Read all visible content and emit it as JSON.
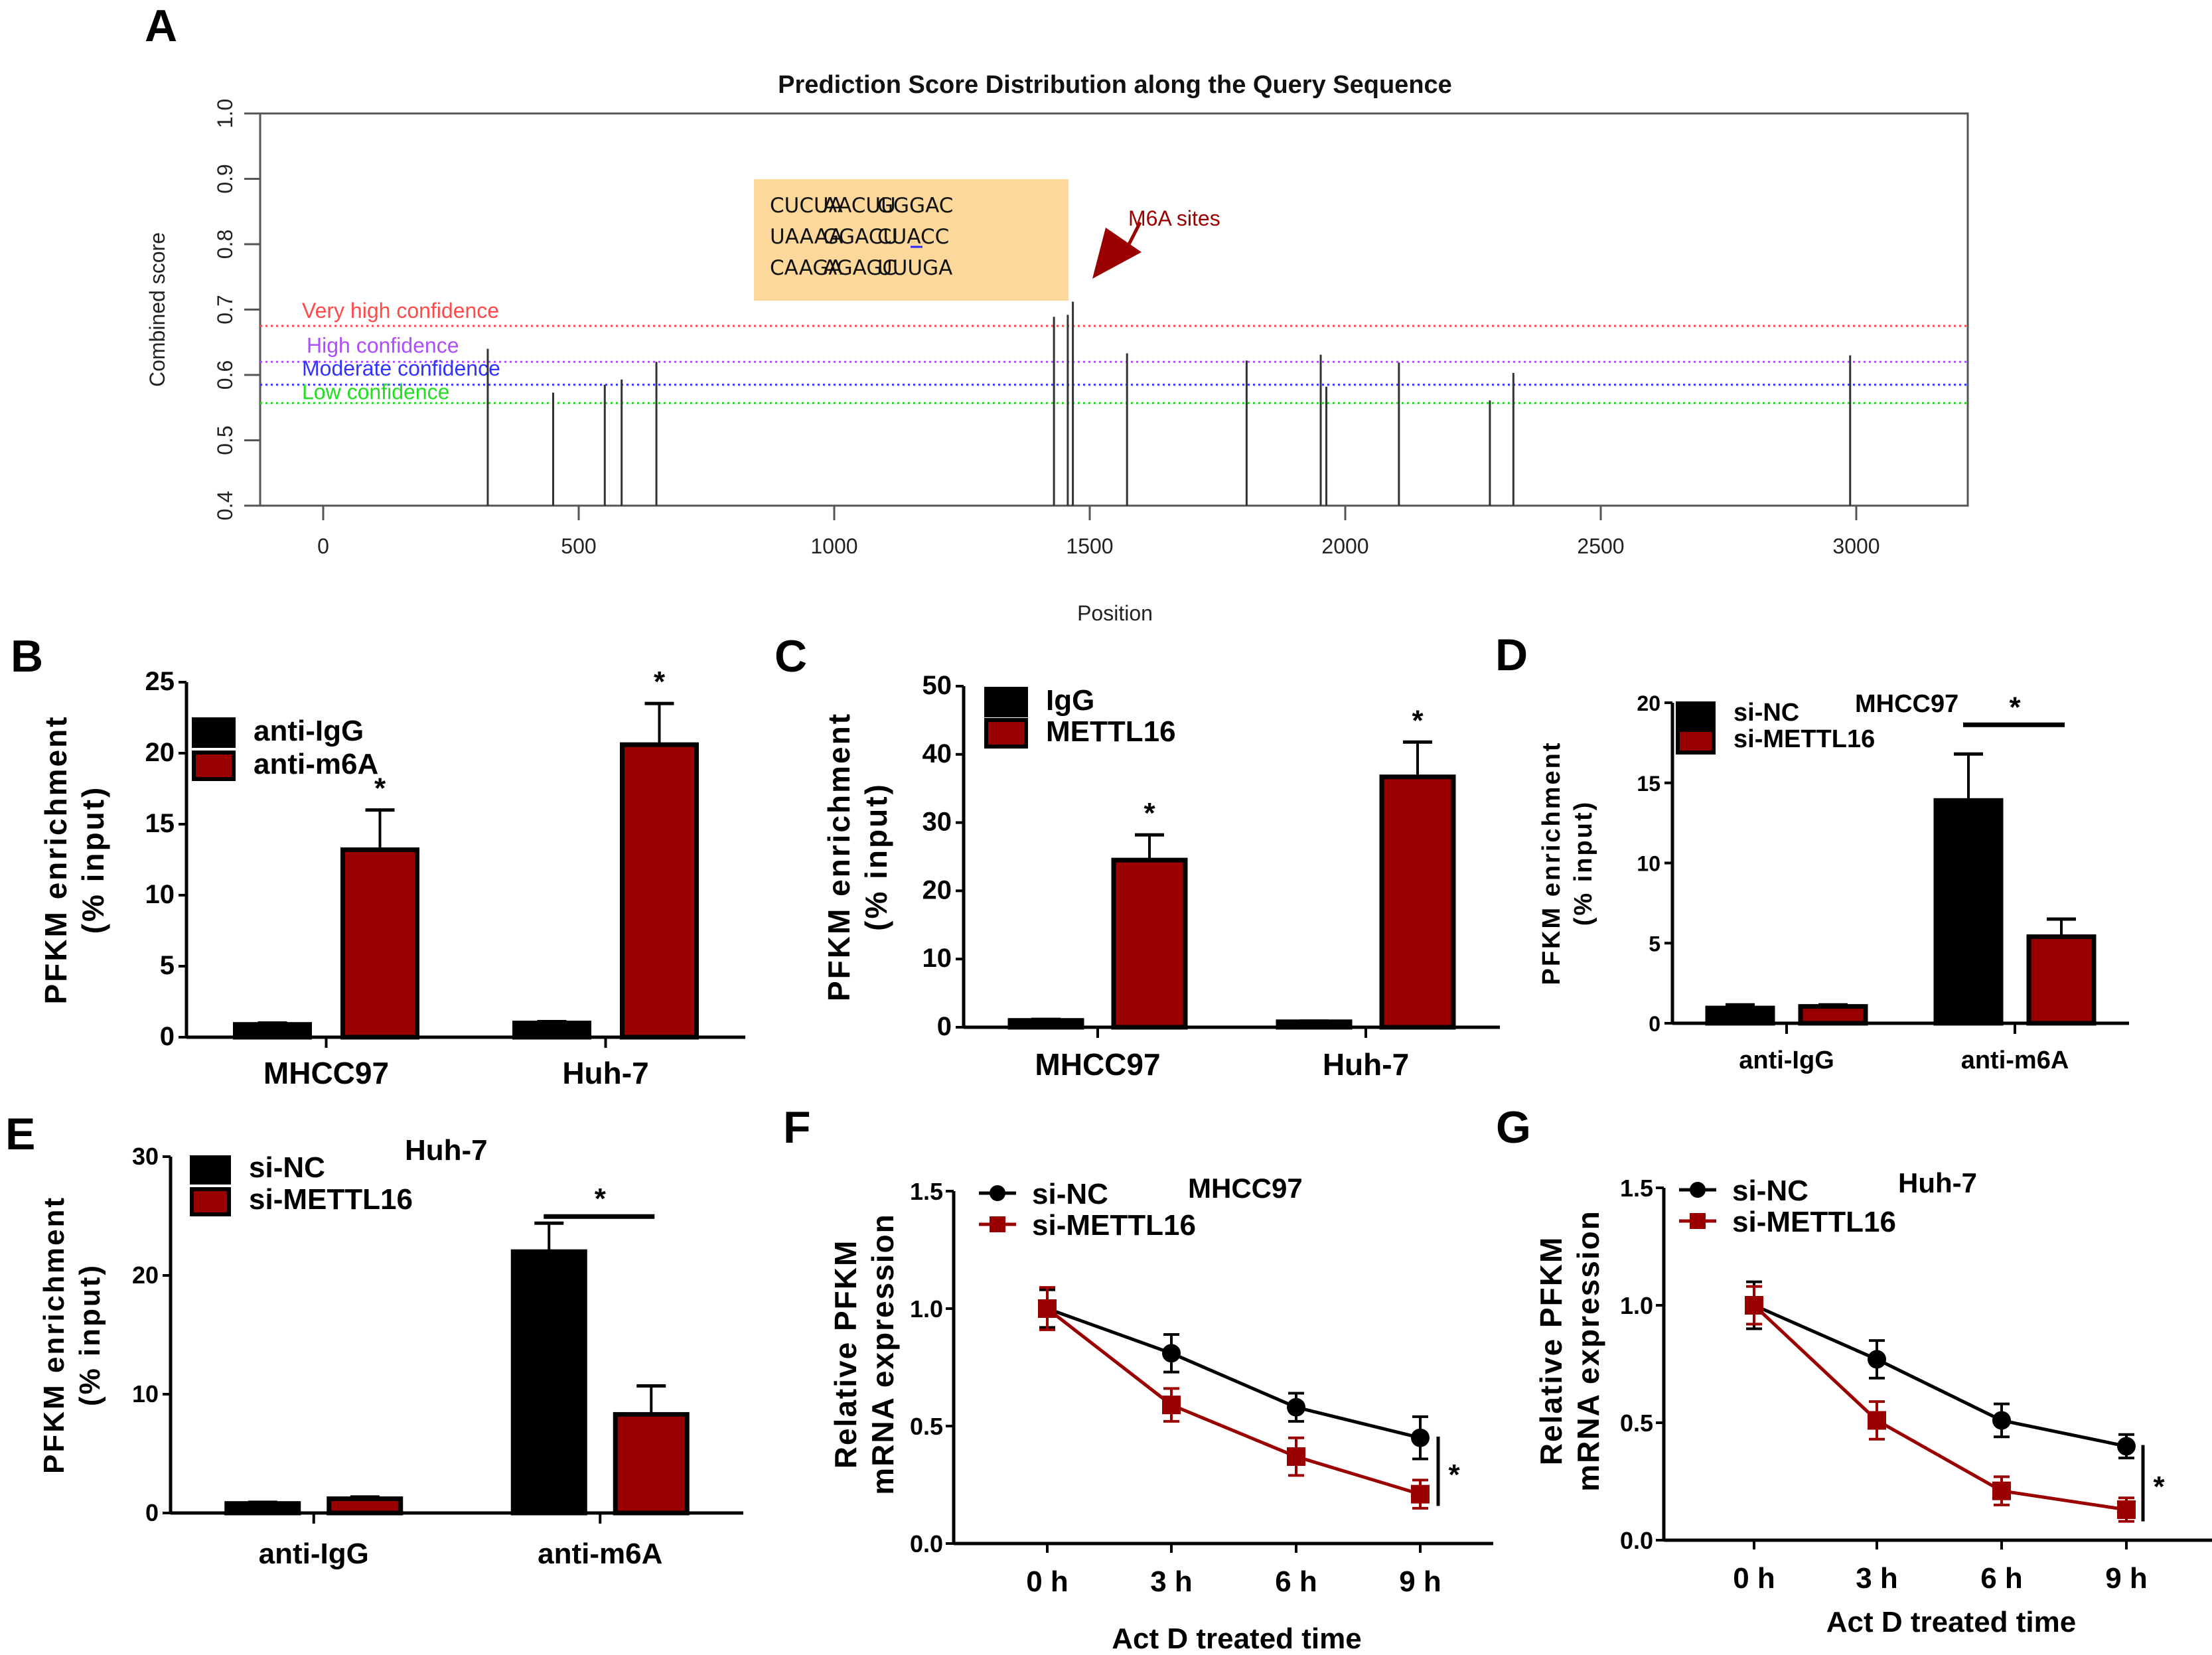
{
  "colors": {
    "black_series": "#000000",
    "red_series": "#9b0000",
    "very_high": "#ff4a4a",
    "high": "#b04cff",
    "moderate": "#3333ff",
    "low": "#22dd22",
    "seq_box": "#fcd89a",
    "arrow": "#9b0000",
    "highlight_text": "#2a2aff"
  },
  "chart_data": [
    {
      "panel": "A",
      "type": "bar",
      "title": "Prediction Score Distribution along the Query Sequence",
      "xlabel": "Position",
      "ylabel": "Combined score",
      "xlim": [
        -120,
        3220
      ],
      "ylim": [
        0.4,
        1.0
      ],
      "xticks": [
        0,
        500,
        1000,
        1500,
        2000,
        2500,
        3000
      ],
      "yticks": [
        "0.4",
        "0.5",
        "0.6",
        "0.7",
        "0.8",
        "0.9",
        "1.0"
      ],
      "thresholds": [
        {
          "label": "Very high confidence",
          "value": 0.675,
          "color_key": "very_high"
        },
        {
          "label": "High confidence",
          "value": 0.62,
          "color_key": "high"
        },
        {
          "label": "Moderate confidence",
          "value": 0.585,
          "color_key": "moderate"
        },
        {
          "label": "Low confidence",
          "value": 0.557,
          "color_key": "low"
        }
      ],
      "stems": [
        {
          "x": 322,
          "y": 0.64
        },
        {
          "x": 450,
          "y": 0.573
        },
        {
          "x": 551,
          "y": 0.585
        },
        {
          "x": 584,
          "y": 0.593
        },
        {
          "x": 652,
          "y": 0.62
        },
        {
          "x": 1430,
          "y": 0.689
        },
        {
          "x": 1457,
          "y": 0.692
        },
        {
          "x": 1467,
          "y": 0.712
        },
        {
          "x": 1573,
          "y": 0.633
        },
        {
          "x": 1807,
          "y": 0.622
        },
        {
          "x": 1952,
          "y": 0.631
        },
        {
          "x": 1963,
          "y": 0.582
        },
        {
          "x": 2105,
          "y": 0.619
        },
        {
          "x": 2283,
          "y": 0.561
        },
        {
          "x": 2329,
          "y": 0.603
        },
        {
          "x": 2988,
          "y": 0.63
        }
      ],
      "sequence_box": {
        "rows": [
          [
            "CUCUA",
            "AACUU",
            "GGGAC"
          ],
          [
            "UAAAA",
            "GGACU",
            "CUACC"
          ],
          [
            "CAAGA",
            "AGAGC",
            "UUUGA"
          ]
        ],
        "highlight": {
          "row": 1,
          "col": 1,
          "underline_char_index": 2
        }
      },
      "annotation": "M6A sites"
    },
    {
      "panel": "B",
      "type": "bar",
      "ylabel": [
        "PFKM enrichment",
        "(% input)"
      ],
      "ylim": [
        0,
        25
      ],
      "yticks": [
        0,
        5,
        10,
        15,
        20,
        25
      ],
      "categories": [
        "MHCC97",
        "Huh-7"
      ],
      "series": [
        {
          "name": "anti-IgG",
          "color_key": "black_series",
          "values": [
            0.9,
            1.0
          ],
          "errors": [
            0.1,
            0.1
          ]
        },
        {
          "name": "anti-m6A",
          "color_key": "red_series",
          "values": [
            13.2,
            20.6
          ],
          "errors": [
            2.8,
            2.9
          ]
        }
      ],
      "significance": [
        {
          "category": 0,
          "series": 1,
          "mark": "*"
        },
        {
          "category": 1,
          "series": 1,
          "mark": "*"
        }
      ]
    },
    {
      "panel": "C",
      "type": "bar",
      "ylabel": [
        "PFKM enrichment",
        "(% input)"
      ],
      "ylim": [
        0,
        50
      ],
      "yticks": [
        0,
        10,
        20,
        30,
        40,
        50
      ],
      "categories": [
        "MHCC97",
        "Huh-7"
      ],
      "series": [
        {
          "name": "IgG",
          "color_key": "black_series",
          "values": [
            1.0,
            0.8
          ],
          "errors": [
            0.15,
            0.1
          ]
        },
        {
          "name": "METTL16",
          "color_key": "red_series",
          "values": [
            24.5,
            36.7
          ],
          "errors": [
            3.7,
            5.1
          ]
        }
      ],
      "significance": [
        {
          "category": 0,
          "series": 1,
          "mark": "*"
        },
        {
          "category": 1,
          "series": 1,
          "mark": "*"
        }
      ]
    },
    {
      "panel": "D",
      "type": "bar",
      "subtitle": "MHCC97",
      "ylabel": [
        "PFKM enrichment",
        "(% input)"
      ],
      "ylim": [
        0,
        20
      ],
      "yticks": [
        0,
        5,
        10,
        15,
        20
      ],
      "categories": [
        "anti-IgG",
        "anti-m6A"
      ],
      "series": [
        {
          "name": "si-NC",
          "color_key": "black_series",
          "values": [
            0.95,
            13.9
          ],
          "errors": [
            0.2,
            2.9
          ]
        },
        {
          "name": "si-METTL16",
          "color_key": "red_series",
          "values": [
            1.05,
            5.4
          ],
          "errors": [
            0.1,
            1.1
          ]
        }
      ],
      "bracket": {
        "category": 1,
        "mark": "*"
      }
    },
    {
      "panel": "E",
      "type": "bar",
      "subtitle": "Huh-7",
      "ylabel": [
        "PFKM enrichment",
        "(% input)"
      ],
      "ylim": [
        0,
        30
      ],
      "yticks": [
        0,
        10,
        20,
        30
      ],
      "categories": [
        "anti-IgG",
        "anti-m6A"
      ],
      "series": [
        {
          "name": "si-NC",
          "color_key": "black_series",
          "values": [
            0.8,
            22.0
          ],
          "errors": [
            0.1,
            2.4
          ]
        },
        {
          "name": "si-METTL16",
          "color_key": "red_series",
          "values": [
            1.2,
            8.3
          ],
          "errors": [
            0.15,
            2.4
          ]
        }
      ],
      "bracket": {
        "category": 1,
        "mark": "*"
      }
    },
    {
      "panel": "F",
      "type": "line",
      "subtitle": "MHCC97",
      "xlabel": "Act D treated time",
      "ylabel": [
        "Relative PFKM",
        "mRNA expression"
      ],
      "ylim": [
        0,
        1.5
      ],
      "yticks": [
        "0.0",
        "0.5",
        "1.0",
        "1.5"
      ],
      "categories": [
        "0 h",
        "3 h",
        "6 h",
        "9 h"
      ],
      "series": [
        {
          "name": "si-NC",
          "marker": "circle",
          "color_key": "black_series",
          "values": [
            1.0,
            0.81,
            0.58,
            0.45
          ],
          "errors": [
            0.08,
            0.08,
            0.06,
            0.09
          ]
        },
        {
          "name": "si-METTL16",
          "marker": "square",
          "color_key": "red_series",
          "values": [
            1.0,
            0.59,
            0.37,
            0.21
          ],
          "errors": [
            0.09,
            0.07,
            0.08,
            0.06
          ]
        }
      ],
      "significance_mark": "*"
    },
    {
      "panel": "G",
      "type": "line",
      "subtitle": "Huh-7",
      "xlabel": "Act D treated time",
      "ylabel": [
        "Relative PFKM",
        "mRNA expression"
      ],
      "ylim": [
        0,
        1.5
      ],
      "yticks": [
        "0.0",
        "0.5",
        "1.0",
        "1.5"
      ],
      "categories": [
        "0 h",
        "3 h",
        "6 h",
        "9 h"
      ],
      "series": [
        {
          "name": "si-NC",
          "marker": "circle",
          "color_key": "black_series",
          "values": [
            1.0,
            0.77,
            0.51,
            0.4
          ],
          "errors": [
            0.1,
            0.08,
            0.07,
            0.05
          ]
        },
        {
          "name": "si-METTL16",
          "marker": "square",
          "color_key": "red_series",
          "values": [
            1.0,
            0.51,
            0.21,
            0.13
          ],
          "errors": [
            0.08,
            0.08,
            0.06,
            0.05
          ]
        }
      ],
      "significance_mark": "*"
    }
  ]
}
